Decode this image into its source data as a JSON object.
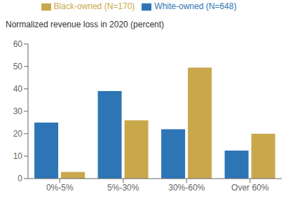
{
  "chart_data": {
    "type": "bar",
    "ylabel": "Normalized revenue loss in 2020 (percent)",
    "categories": [
      "0%-5%",
      "5%-30%",
      "30%-60%",
      "Over 60%"
    ],
    "series": [
      {
        "name": "White-owned (N=648)",
        "color": "#2E75B6",
        "values": [
          25,
          39,
          22,
          12.5
        ]
      },
      {
        "name": "Black-owned (N=170)",
        "color": "#C9A84C",
        "values": [
          3,
          26,
          49.5,
          20
        ]
      }
    ],
    "ylim": [
      0,
      60
    ],
    "yticks": [
      0,
      10,
      20,
      30,
      40,
      50,
      60
    ],
    "grid": false,
    "legend": "top"
  }
}
